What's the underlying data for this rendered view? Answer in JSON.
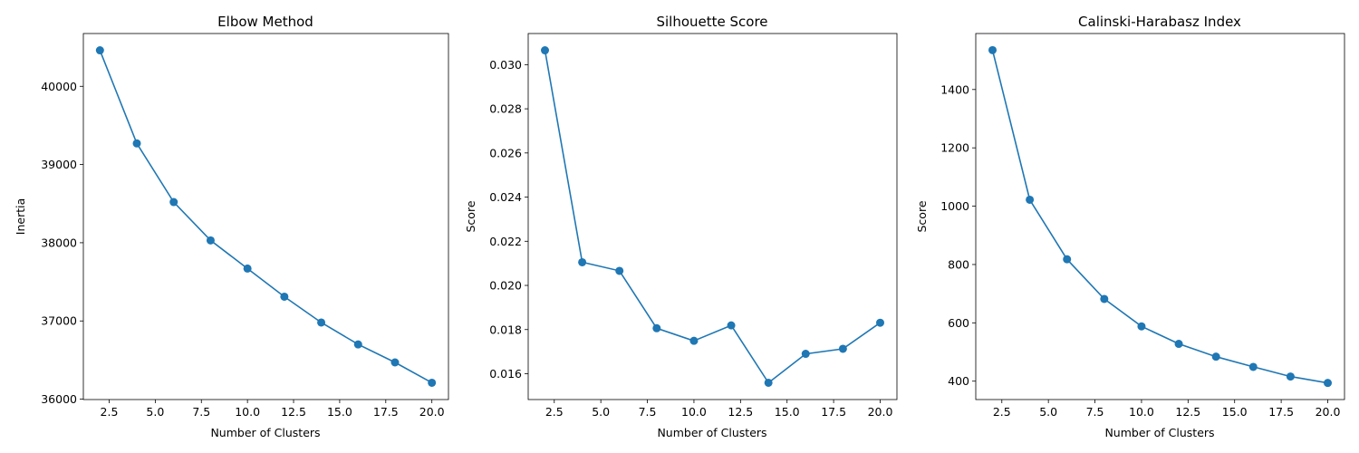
{
  "chart_data": [
    {
      "type": "line",
      "title": "Elbow Method",
      "xlabel": "Number of Clusters",
      "ylabel": "Inertia",
      "x": [
        2,
        4,
        6,
        8,
        10,
        12,
        14,
        16,
        18,
        20
      ],
      "series": [
        {
          "values": [
            40460,
            39270,
            38520,
            38030,
            37670,
            37310,
            36980,
            36700,
            36470,
            36210
          ]
        }
      ],
      "xlim": [
        1.1,
        20.9
      ],
      "ylim": [
        35995,
        40675
      ],
      "xticks": [
        2.5,
        5.0,
        7.5,
        10.0,
        12.5,
        15.0,
        17.5,
        20.0
      ],
      "xtick_labels": [
        "2.5",
        "5.0",
        "7.5",
        "10.0",
        "12.5",
        "15.0",
        "17.5",
        "20.0"
      ],
      "yticks": [
        36000,
        37000,
        38000,
        39000,
        40000
      ],
      "ytick_labels": [
        "36000",
        "37000",
        "38000",
        "39000",
        "40000"
      ],
      "marker": "circle",
      "color": "#1f77b4",
      "grid": false
    },
    {
      "type": "line",
      "title": "Silhouette Score",
      "xlabel": "Number of Clusters",
      "ylabel": "Score",
      "x": [
        2,
        4,
        6,
        8,
        10,
        12,
        14,
        16,
        18,
        20
      ],
      "series": [
        {
          "values": [
            0.03065,
            0.02105,
            0.02066,
            0.01806,
            0.01749,
            0.01819,
            0.01559,
            0.0169,
            0.01713,
            0.01831
          ]
        }
      ],
      "xlim": [
        1.1,
        20.9
      ],
      "ylim": [
        0.01483,
        0.03141
      ],
      "xticks": [
        2.5,
        5.0,
        7.5,
        10.0,
        12.5,
        15.0,
        17.5,
        20.0
      ],
      "xtick_labels": [
        "2.5",
        "5.0",
        "7.5",
        "10.0",
        "12.5",
        "15.0",
        "17.5",
        "20.0"
      ],
      "yticks": [
        0.016,
        0.018,
        0.02,
        0.022,
        0.024,
        0.026,
        0.028,
        0.03
      ],
      "ytick_labels": [
        "0.016",
        "0.018",
        "0.020",
        "0.022",
        "0.024",
        "0.026",
        "0.028",
        "0.030"
      ],
      "marker": "circle",
      "color": "#1f77b4",
      "grid": false
    },
    {
      "type": "line",
      "title": "Calinski-Harabasz Index",
      "xlabel": "Number of Clusters",
      "ylabel": "Score",
      "x": [
        2,
        4,
        6,
        8,
        10,
        12,
        14,
        16,
        18,
        20
      ],
      "series": [
        {
          "values": [
            1535,
            1022,
            818,
            682,
            588,
            528,
            484,
            449,
            416,
            394
          ]
        }
      ],
      "xlim": [
        1.1,
        20.9
      ],
      "ylim": [
        337,
        1592
      ],
      "xticks": [
        2.5,
        5.0,
        7.5,
        10.0,
        12.5,
        15.0,
        17.5,
        20.0
      ],
      "xtick_labels": [
        "2.5",
        "5.0",
        "7.5",
        "10.0",
        "12.5",
        "15.0",
        "17.5",
        "20.0"
      ],
      "yticks": [
        400,
        600,
        800,
        1000,
        1200,
        1400
      ],
      "ytick_labels": [
        "400",
        "600",
        "800",
        "1000",
        "1200",
        "1400"
      ],
      "marker": "circle",
      "color": "#1f77b4",
      "grid": false
    }
  ]
}
